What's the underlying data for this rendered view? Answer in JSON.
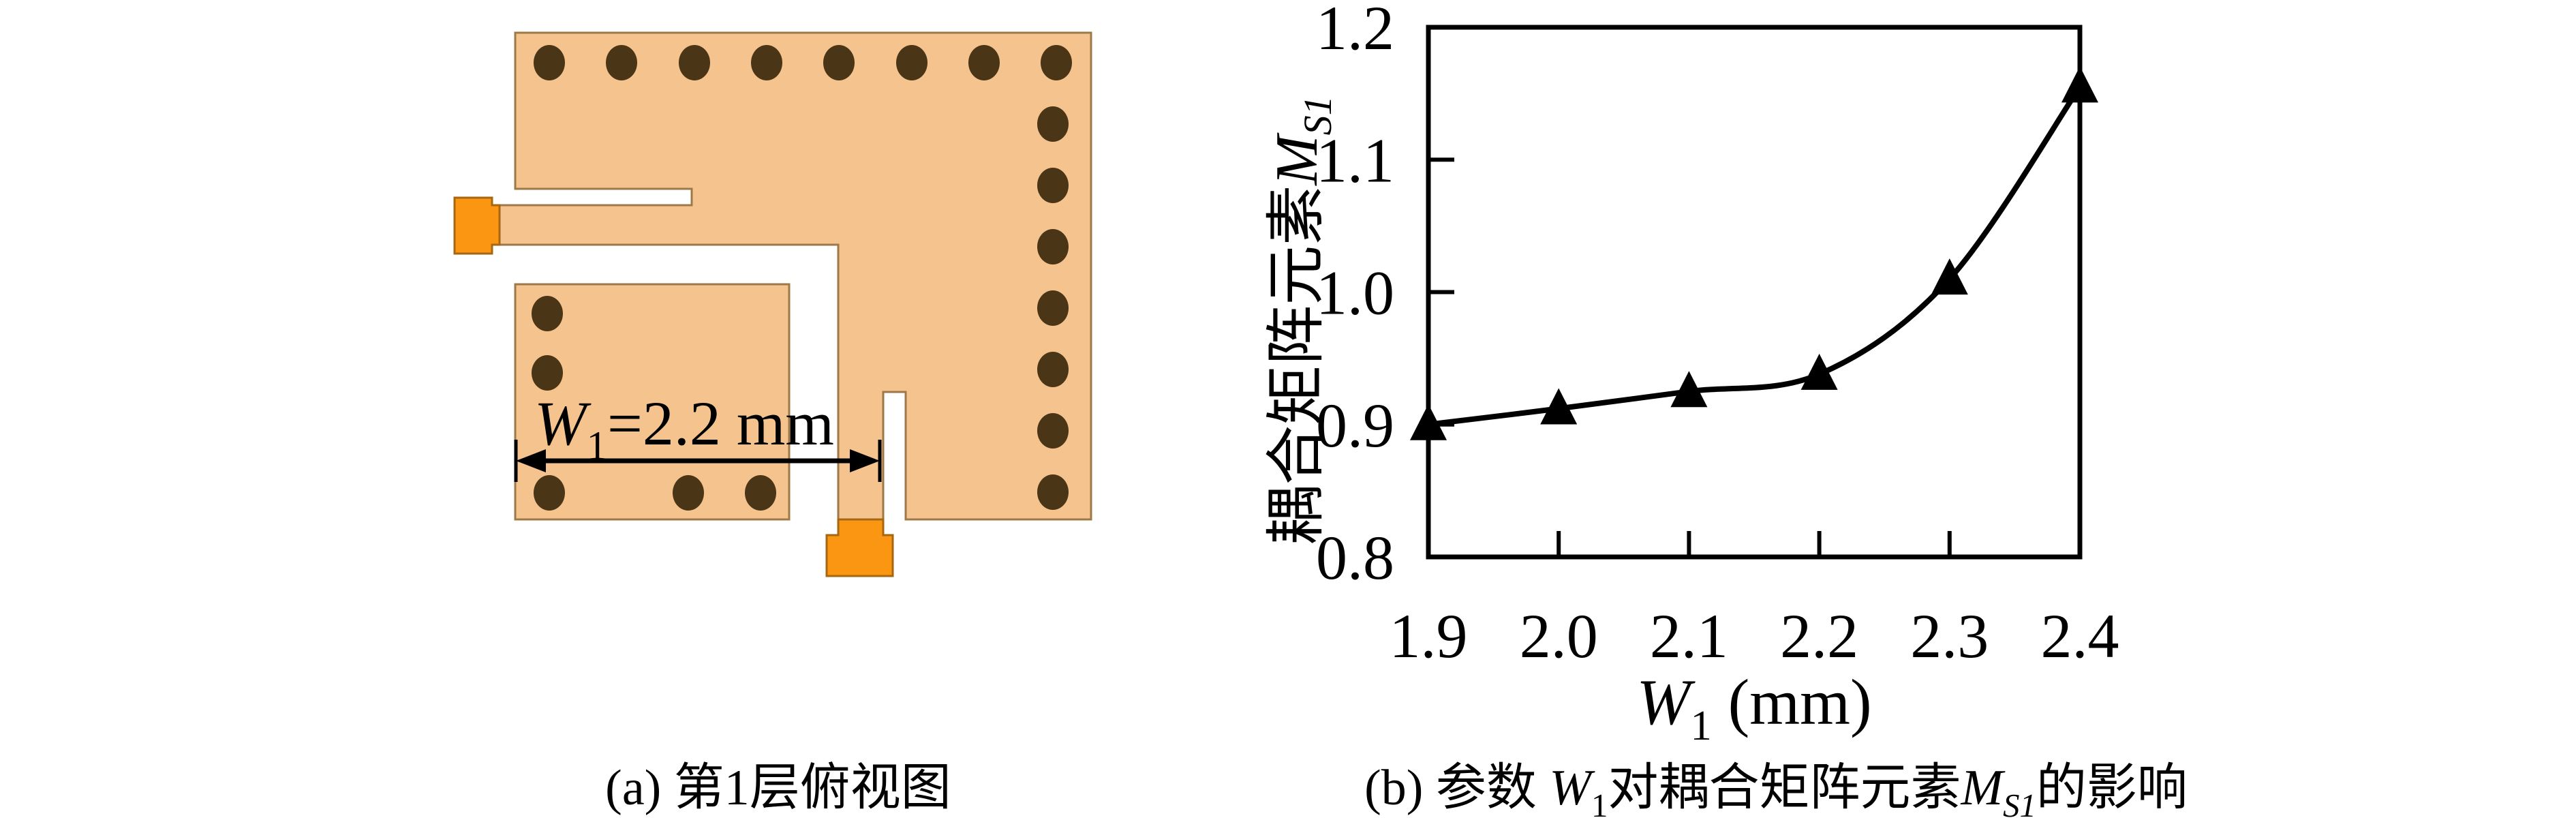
{
  "figure": {
    "panel_a": {
      "caption": "(a) 第1层俯视图",
      "dimension_label_parts": [
        {
          "t": "W",
          "italic": true
        },
        {
          "t": "1",
          "sub": true
        },
        {
          "t": "=2.2 mm"
        }
      ],
      "colors": {
        "copper_fill": "#F5C38E",
        "copper_border": "#9F7848",
        "via_fill": "#4A3517",
        "pad_fill": "#FB9613",
        "pad_border": "#A66711"
      },
      "vias": {
        "rx": 23,
        "ry": 26,
        "top_row": [
          [
            806,
            92
          ],
          [
            912,
            92
          ],
          [
            1019,
            92
          ],
          [
            1125,
            92
          ],
          [
            1231,
            92
          ],
          [
            1338,
            92
          ],
          [
            1444,
            92
          ],
          [
            1550,
            92
          ]
        ],
        "right_column": [
          [
            1545,
            182
          ],
          [
            1545,
            272
          ],
          [
            1545,
            362
          ],
          [
            1545,
            452
          ],
          [
            1545,
            542
          ],
          [
            1545,
            632
          ],
          [
            1545,
            722
          ]
        ],
        "patch_left": [
          [
            803,
            460
          ],
          [
            803,
            547
          ]
        ],
        "patch_bottom": [
          [
            806,
            723
          ],
          [
            1010,
            723
          ],
          [
            1116,
            723
          ]
        ]
      }
    },
    "panel_b": {
      "caption_parts": [
        {
          "t": "(b) 参数 "
        },
        {
          "t": "W",
          "italic": true
        },
        {
          "t": "1",
          "sub": true
        },
        {
          "t": "对耦合矩阵元素",
          "cjk": true
        },
        {
          "t": "M",
          "italic": true
        },
        {
          "t": "S1",
          "sub": true,
          "italic": true
        },
        {
          "t": "的影响",
          "cjk": true
        }
      ],
      "xlabel_parts": [
        {
          "t": "W",
          "italic": true
        },
        {
          "t": "1",
          "sub": true
        },
        {
          "t": " (mm)"
        }
      ],
      "ylabel_parts": [
        {
          "t": "耦合矩阵元素",
          "cjk": true
        },
        {
          "t": "M",
          "italic": true
        },
        {
          "t": "S1",
          "sub": true,
          "italic": true
        }
      ]
    }
  },
  "chart_data": {
    "type": "line",
    "title": "",
    "xlabel": "W1 (mm)",
    "ylabel": "耦合矩阵元素 MS1",
    "x": [
      1.9,
      2.0,
      2.1,
      2.2,
      2.3,
      2.4
    ],
    "series": [
      {
        "name": "MS1",
        "values": [
          0.9,
          0.912,
          0.925,
          0.938,
          1.01,
          1.155
        ]
      }
    ],
    "xlim": [
      1.9,
      2.4
    ],
    "ylim": [
      0.8,
      1.2
    ],
    "xtick_labels": [
      "1.9",
      "2.0",
      "2.1",
      "2.2",
      "2.3",
      "2.4"
    ],
    "ytick_labels": [
      "0.8",
      "0.9",
      "1.0",
      "1.1",
      "1.2"
    ],
    "xtick_values": [
      1.9,
      2.0,
      2.1,
      2.2,
      2.3,
      2.4
    ],
    "ytick_values": [
      0.8,
      0.9,
      1.0,
      1.1,
      1.2
    ],
    "inner_xtick_marks": [
      2.0,
      2.1,
      2.2,
      2.3
    ],
    "inner_ytick_marks": [
      0.9,
      1.0,
      1.1
    ],
    "marker": "triangle-up",
    "marker_color": "#000000",
    "line_color": "#000000",
    "grid": false,
    "legend": "none"
  }
}
